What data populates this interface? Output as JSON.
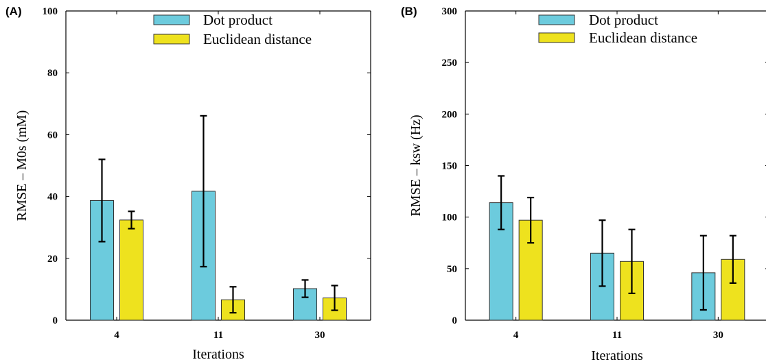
{
  "chart_data": [
    {
      "panel_label": "(A)",
      "type": "bar",
      "categories": [
        "4",
        "11",
        "30"
      ],
      "series": [
        {
          "name": "Dot product",
          "color": "#6ccbdd",
          "values": [
            38.7,
            41.7,
            10.2
          ],
          "errors": [
            13.3,
            24.4,
            2.8
          ]
        },
        {
          "name": "Euclidean distance",
          "color": "#eee21e",
          "values": [
            32.4,
            6.6,
            7.2
          ],
          "errors": [
            2.8,
            4.2,
            4.0
          ]
        }
      ],
      "xlabel": "Iterations",
      "ylabel": "RMSE – M0s (mM)",
      "ylim": [
        0,
        100
      ],
      "yticks": [
        0,
        20,
        40,
        60,
        80,
        100
      ],
      "legend_position": "top-right",
      "grid": false
    },
    {
      "panel_label": "(B)",
      "type": "bar",
      "categories": [
        "4",
        "11",
        "30"
      ],
      "series": [
        {
          "name": "Dot product",
          "color": "#6ccbdd",
          "values": [
            114,
            65,
            46
          ],
          "errors": [
            26,
            32,
            36
          ]
        },
        {
          "name": "Euclidean distance",
          "color": "#eee21e",
          "values": [
            97,
            57,
            59
          ],
          "errors": [
            22,
            31,
            23
          ]
        }
      ],
      "xlabel": "Iterations",
      "ylabel": "RMSE – ksw (Hz)",
      "ylim": [
        0,
        300
      ],
      "yticks": [
        0,
        50,
        100,
        150,
        200,
        250,
        300
      ],
      "legend_position": "top-right",
      "grid": false
    }
  ]
}
